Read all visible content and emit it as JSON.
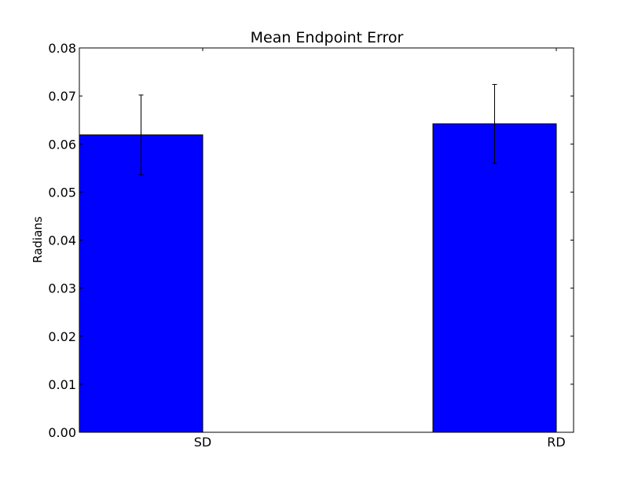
{
  "chart_data": {
    "type": "bar",
    "title": "Mean Endpoint Error",
    "xlabel": "",
    "ylabel": "Radians",
    "categories": [
      "SD",
      "RD"
    ],
    "values": [
      0.0619,
      0.0642
    ],
    "errors": [
      0.0083,
      0.0082
    ],
    "ylim": [
      0,
      0.08
    ],
    "yticks": [
      "0.00",
      "0.01",
      "0.02",
      "0.03",
      "0.04",
      "0.05",
      "0.06",
      "0.07",
      "0.08"
    ],
    "grid": false,
    "legend": "none",
    "bar_color": "#0000ff",
    "edge_color": "#000000"
  }
}
